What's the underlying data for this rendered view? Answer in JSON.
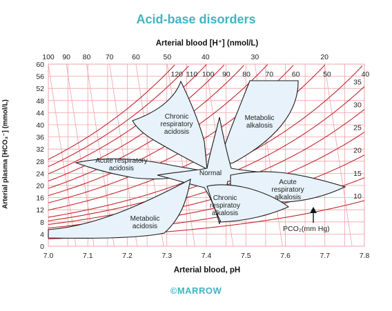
{
  "title": "Acid-base disorders",
  "top_axis_title": "Arterial blood [H⁺] (nmol/L)",
  "bottom_axis_title": "Arterial blood, pH",
  "y_axis_title": "Arterial plasma [HCO₃⁻] (mmol/L)",
  "watermark": "©MARROW",
  "pco2_label": "PCO₂(mm Hg)",
  "colors": {
    "title": "#3fb3c3",
    "grid": "#f0a0a8",
    "isobar": "#c0262c",
    "region_fill": "#e7f2fa",
    "region_stroke": "#1a1a1a"
  },
  "chart_data": {
    "type": "diagram",
    "xlim": [
      7.0,
      7.8
    ],
    "ylim": [
      0,
      60
    ],
    "x_ticks": [
      "7.0",
      "7.1",
      "7.2",
      "7.3",
      "7.4",
      "7.5",
      "7.6",
      "7.7",
      "7.8"
    ],
    "y_ticks": [
      "0",
      "4",
      "8",
      "12",
      "16",
      "20",
      "24",
      "28",
      "32",
      "36",
      "40",
      "44",
      "48",
      "52",
      "56",
      "60"
    ],
    "h_ticks": [
      "100",
      "90",
      "80",
      "70",
      "60",
      "50",
      "40",
      "30",
      "20"
    ],
    "pco2_isobars": [
      10,
      15,
      20,
      25,
      30,
      35,
      40,
      50,
      60,
      70,
      80,
      90,
      100,
      110,
      120
    ],
    "pco2_top_labels": [
      "120",
      "110",
      "100",
      "90",
      "80",
      "70",
      "60",
      "50",
      "40"
    ],
    "pco2_right_labels": [
      "35",
      "30",
      "25",
      "20",
      "15",
      "10"
    ],
    "regions": [
      {
        "name": "Chronic respiratory acidosis",
        "lines": [
          "Chronic",
          "respiratory",
          "acidosis"
        ]
      },
      {
        "name": "Metabolic alkalosis",
        "lines": [
          "Metabolic",
          "alkalosis"
        ]
      },
      {
        "name": "Acute respiratory acidosis",
        "lines": [
          "Acute respiratory",
          "acidosis"
        ]
      },
      {
        "name": "Normal",
        "lines": [
          "Normal"
        ]
      },
      {
        "name": "Acute respiratory alkalosis",
        "lines": [
          "Acute",
          "respiratory",
          "alkalosis"
        ]
      },
      {
        "name": "Chronic respiratoy alkalosis",
        "lines": [
          "Chronic",
          "respiratoy",
          "alkalosis"
        ]
      },
      {
        "name": "Metabolic acidosis",
        "lines": [
          "Metabolic",
          "acidosis"
        ]
      }
    ]
  }
}
